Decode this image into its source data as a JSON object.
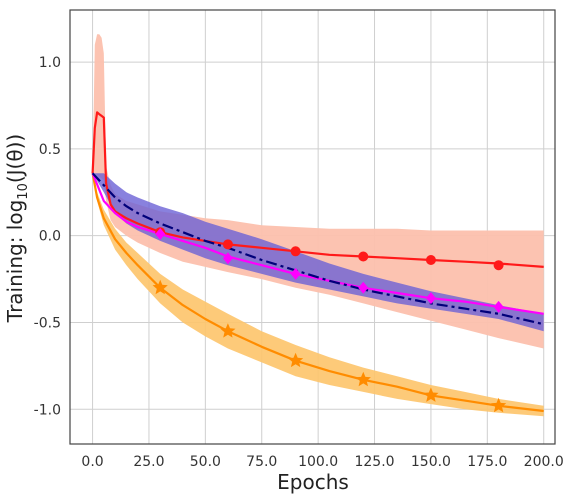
{
  "chart_data": {
    "type": "line",
    "title": "",
    "xlabel": "Epochs",
    "ylabel": "Training: log₁₀(J(θ))",
    "ylabel_parts": {
      "prefix": "Training: log",
      "sub": "10",
      "suffix": "(J(θ))"
    },
    "xlim": [
      -10,
      205
    ],
    "ylim": [
      -1.2,
      1.3
    ],
    "grid": true,
    "legend": "none",
    "xticks": [
      0.0,
      25.0,
      50.0,
      75.0,
      100.0,
      125.0,
      150.0,
      175.0,
      200.0
    ],
    "xtick_labels": [
      "0.0",
      "25.0",
      "50.0",
      "75.0",
      "100.0",
      "125.0",
      "150.0",
      "175.0",
      "200.0"
    ],
    "yticks": [
      1.0,
      0.5,
      0.0,
      -0.5,
      -1.0
    ],
    "ytick_labels": [
      "1.0",
      "0.5",
      "0.0",
      "-0.5",
      "-1.0"
    ],
    "series": [
      {
        "color": "#ff1a1a",
        "band_color": "#fcc0ad",
        "line_style": "solid",
        "marker": "circle",
        "x": [
          0,
          1,
          2,
          3,
          4,
          5,
          6,
          8,
          10,
          15,
          20,
          30,
          40,
          50,
          60,
          75,
          90,
          105,
          120,
          135,
          150,
          165,
          180,
          200
        ],
        "y": [
          0.36,
          0.62,
          0.71,
          0.7,
          0.69,
          0.68,
          0.3,
          0.18,
          0.14,
          0.1,
          0.07,
          0.02,
          -0.01,
          -0.03,
          -0.05,
          -0.07,
          -0.09,
          -0.11,
          -0.12,
          -0.13,
          -0.14,
          -0.15,
          -0.16,
          -0.18
        ],
        "lower": [
          0.36,
          0.36,
          0.35,
          0.34,
          0.33,
          0.32,
          0.2,
          0.09,
          0.05,
          0.0,
          -0.04,
          -0.1,
          -0.15,
          -0.18,
          -0.21,
          -0.25,
          -0.3,
          -0.34,
          -0.39,
          -0.44,
          -0.49,
          -0.54,
          -0.59,
          -0.65
        ],
        "upper": [
          0.36,
          1.1,
          1.16,
          1.16,
          1.14,
          1.05,
          0.4,
          0.29,
          0.24,
          0.2,
          0.18,
          0.14,
          0.12,
          0.1,
          0.09,
          0.06,
          0.05,
          0.04,
          0.04,
          0.04,
          0.03,
          0.03,
          0.03,
          0.03
        ],
        "markers_x": [
          30,
          60,
          90,
          120,
          150,
          180
        ],
        "markers_y": [
          0.02,
          -0.05,
          -0.09,
          -0.12,
          -0.14,
          -0.17
        ]
      },
      {
        "color": "#00007a",
        "band_color": "#6b62d6",
        "line_style": "dashdot",
        "marker": "none",
        "x": [
          0,
          5,
          10,
          15,
          20,
          30,
          40,
          50,
          60,
          75,
          90,
          105,
          120,
          135,
          150,
          165,
          180,
          200
        ],
        "y": [
          0.36,
          0.29,
          0.22,
          0.17,
          0.13,
          0.07,
          0.02,
          -0.03,
          -0.07,
          -0.14,
          -0.2,
          -0.26,
          -0.31,
          -0.35,
          -0.39,
          -0.42,
          -0.45,
          -0.51
        ],
        "lower": [
          0.36,
          0.25,
          0.13,
          0.07,
          0.03,
          -0.03,
          -0.08,
          -0.13,
          -0.17,
          -0.22,
          -0.27,
          -0.31,
          -0.35,
          -0.39,
          -0.42,
          -0.45,
          -0.48,
          -0.55
        ],
        "upper": [
          0.36,
          0.36,
          0.3,
          0.25,
          0.22,
          0.17,
          0.13,
          0.08,
          0.04,
          -0.02,
          -0.09,
          -0.16,
          -0.22,
          -0.27,
          -0.32,
          -0.36,
          -0.4,
          -0.45
        ]
      },
      {
        "color": "#ff00ff",
        "band_color": "",
        "line_style": "solid",
        "marker": "diamond",
        "x": [
          0,
          5,
          10,
          15,
          20,
          30,
          40,
          50,
          60,
          75,
          90,
          105,
          120,
          135,
          150,
          165,
          180,
          200
        ],
        "y": [
          0.36,
          0.2,
          0.13,
          0.08,
          0.05,
          0.01,
          -0.03,
          -0.07,
          -0.12,
          -0.17,
          -0.22,
          -0.26,
          -0.3,
          -0.33,
          -0.36,
          -0.38,
          -0.41,
          -0.45
        ],
        "markers_x": [
          30,
          60,
          90,
          120,
          150,
          180
        ],
        "markers_y": [
          0.01,
          -0.13,
          -0.22,
          -0.3,
          -0.36,
          -0.41
        ]
      },
      {
        "color": "#ff8c00",
        "band_color": "#fdc46a",
        "line_style": "solid",
        "marker": "star",
        "x": [
          0,
          2,
          5,
          10,
          15,
          20,
          30,
          40,
          50,
          60,
          75,
          90,
          105,
          120,
          135,
          150,
          165,
          180,
          200
        ],
        "y": [
          0.36,
          0.22,
          0.1,
          -0.02,
          -0.1,
          -0.17,
          -0.3,
          -0.4,
          -0.48,
          -0.55,
          -0.64,
          -0.72,
          -0.78,
          -0.83,
          -0.87,
          -0.92,
          -0.95,
          -0.98,
          -1.01
        ],
        "lower": [
          0.36,
          0.2,
          0.06,
          -0.08,
          -0.17,
          -0.25,
          -0.39,
          -0.5,
          -0.58,
          -0.65,
          -0.73,
          -0.81,
          -0.86,
          -0.9,
          -0.94,
          -0.97,
          -1.0,
          -1.02,
          -1.04
        ],
        "upper": [
          0.36,
          0.25,
          0.15,
          0.04,
          -0.04,
          -0.1,
          -0.22,
          -0.31,
          -0.38,
          -0.45,
          -0.55,
          -0.63,
          -0.7,
          -0.76,
          -0.81,
          -0.86,
          -0.9,
          -0.94,
          -0.98
        ],
        "markers_x": [
          30,
          60,
          90,
          120,
          150,
          180
        ],
        "markers_y": [
          -0.3,
          -0.55,
          -0.72,
          -0.83,
          -0.92,
          -0.98
        ]
      }
    ]
  }
}
